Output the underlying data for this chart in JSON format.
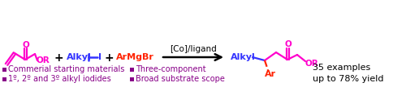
{
  "bg_color": "#ffffff",
  "magenta": "#FF00CC",
  "blue": "#3333FF",
  "red": "#FF2200",
  "black": "#000000",
  "bullet_color": "#880088",
  "bullet1_text": "Commerial starting materials",
  "bullet2_text": "1º, 2º and 3º alkyl iodides",
  "bullet3_text": "Three-component",
  "bullet4_text": "Broad substrate scope",
  "examples_text": "35 examples",
  "yield_text": "up to 78% yield",
  "arrow_label": "[Co]/ligand",
  "figsize": [
    5.0,
    1.08
  ],
  "dpi": 100
}
